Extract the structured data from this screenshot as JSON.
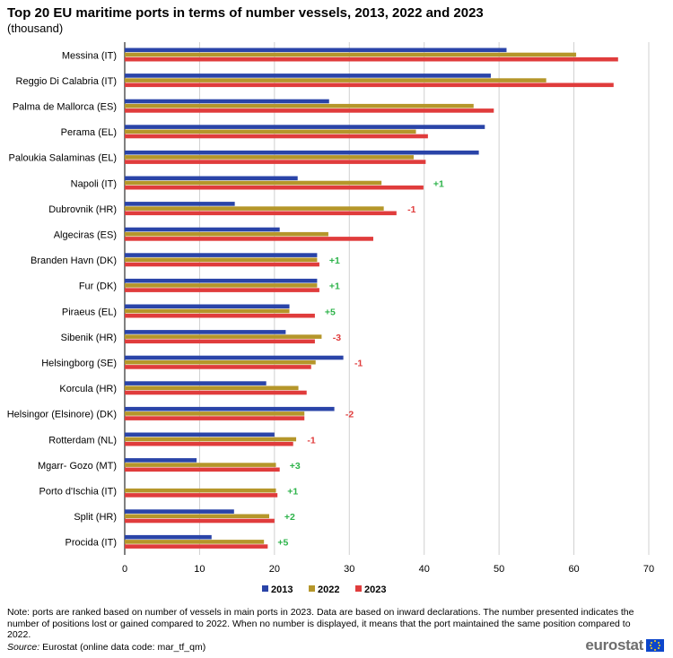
{
  "title": "Top 20 EU maritime ports in terms of number vessels, 2013, 2022 and 2023",
  "subtitle": "(thousand)",
  "note": "Note: ports are ranked based on number of vessels in main ports in 2023. Data are based on inward declarations. The number presented indicates the number of positions lost or gained compared to 2022. When no number is displayed, it means that the port maintained the same position compared to 2022.",
  "source_label": "Source:",
  "source_text": " Eurostat (online data code: mar_tf_qm)",
  "logo_text": "eurostat",
  "colors": {
    "2013": "#2a44a8",
    "2022": "#b5962a",
    "2023": "#e03c3c",
    "gain": "#2db34a",
    "loss": "#e03c3c",
    "grid": "#d0d0d0"
  },
  "chart_data": {
    "type": "bar",
    "orientation": "horizontal",
    "title": "Top 20 EU maritime ports in terms of number vessels, 2013, 2022 and 2023",
    "unit": "thousand",
    "xlim": [
      0,
      70
    ],
    "xticks": [
      0,
      10,
      20,
      30,
      40,
      50,
      60,
      70
    ],
    "legend": [
      "2013",
      "2022",
      "2023"
    ],
    "legend_position": "bottom-center",
    "categories": [
      "Messina (IT)",
      "Reggio Di Calabria (IT)",
      "Palma de Mallorca (ES)",
      "Perama (EL)",
      "Paloukia Salaminas (EL)",
      "Napoli (IT)",
      "Dubrovnik (HR)",
      "Algeciras (ES)",
      "Branden Havn (DK)",
      "Fur (DK)",
      "Piraeus (EL)",
      "Sibenik (HR)",
      "Helsingborg (SE)",
      "Korcula (HR)",
      "Helsingor (Elsinore) (DK)",
      "Rotterdam (NL)",
      "Mgarr- Gozo (MT)",
      "Porto d'Ischia (IT)",
      "Split (HR)",
      "Procida (IT)"
    ],
    "series": [
      {
        "name": "2013",
        "values": [
          51.0,
          48.9,
          27.3,
          48.1,
          47.3,
          23.1,
          14.7,
          20.7,
          25.7,
          25.7,
          22.0,
          21.5,
          29.2,
          18.9,
          28.0,
          20.0,
          9.6,
          null,
          14.6,
          11.6
        ]
      },
      {
        "name": "2022",
        "values": [
          60.3,
          56.3,
          46.6,
          38.9,
          38.6,
          34.3,
          34.6,
          27.2,
          25.7,
          25.7,
          22.0,
          26.3,
          25.5,
          23.2,
          24.0,
          22.9,
          20.2,
          20.2,
          19.3,
          18.6
        ]
      },
      {
        "name": "2023",
        "values": [
          65.9,
          65.3,
          49.3,
          40.5,
          40.2,
          39.9,
          36.3,
          33.2,
          26.0,
          26.0,
          25.4,
          25.4,
          24.9,
          24.3,
          24.0,
          22.5,
          20.7,
          20.4,
          20.0,
          19.1
        ]
      }
    ],
    "rank_change": [
      "",
      "",
      "",
      "",
      "",
      "+1",
      "-1",
      "",
      "+1",
      "+1",
      "+5",
      "-3",
      "-1",
      "",
      "-2",
      "-1",
      "+3",
      "+1",
      "+2",
      "+5"
    ]
  }
}
